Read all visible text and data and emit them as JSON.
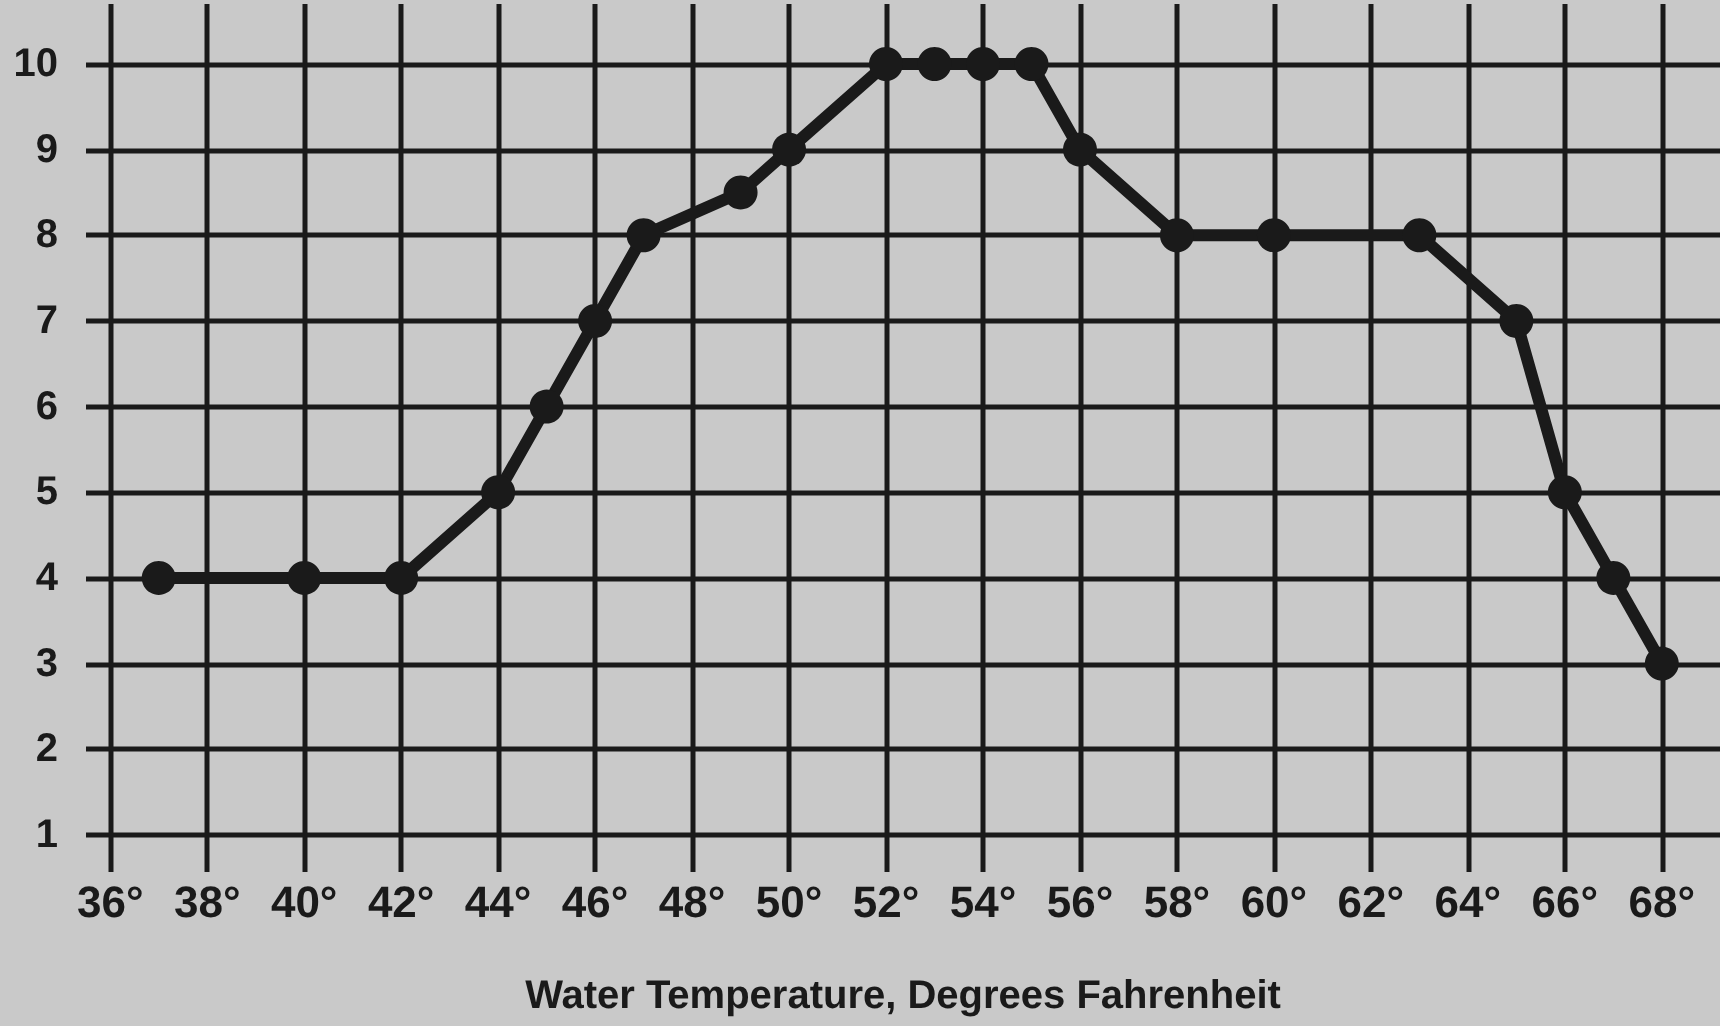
{
  "chart_data": {
    "type": "line",
    "xlabel": "Water Temperature, Degrees Fahrenheit",
    "x": [
      37,
      40,
      42,
      44,
      45,
      46,
      47,
      49,
      50,
      52,
      53,
      54,
      55,
      56,
      58,
      60,
      63,
      65,
      66,
      67,
      68
    ],
    "series": [
      {
        "color": "#1a1a1a",
        "values": [
          4,
          4,
          4,
          5,
          6,
          7,
          8,
          8.5,
          9,
          10,
          10,
          10,
          10,
          9,
          8,
          8,
          8,
          7,
          5,
          4,
          3
        ]
      }
    ],
    "xlim": [
      35.5,
      69.2
    ],
    "xticks": [
      {
        "value": 36,
        "label": "36°"
      },
      {
        "value": 38,
        "label": "38°"
      },
      {
        "value": 40,
        "label": "40°"
      },
      {
        "value": 42,
        "label": "42°"
      },
      {
        "value": 44,
        "label": "44°"
      },
      {
        "value": 46,
        "label": "46°"
      },
      {
        "value": 48,
        "label": "48°"
      },
      {
        "value": 50,
        "label": "50°"
      },
      {
        "value": 52,
        "label": "52°"
      },
      {
        "value": 54,
        "label": "54°"
      },
      {
        "value": 56,
        "label": "56°"
      },
      {
        "value": 58,
        "label": "58°"
      },
      {
        "value": 60,
        "label": "60°"
      },
      {
        "value": 62,
        "label": "62°"
      },
      {
        "value": 64,
        "label": "64°"
      },
      {
        "value": 66,
        "label": "66°"
      },
      {
        "value": 68,
        "label": "68°"
      }
    ],
    "ylim": [
      0.8,
      10.7
    ],
    "yticks": [
      1,
      2,
      3,
      4,
      5,
      6,
      7,
      8,
      9,
      10
    ],
    "grid": true,
    "marker": "circle",
    "line_style": "solid"
  }
}
